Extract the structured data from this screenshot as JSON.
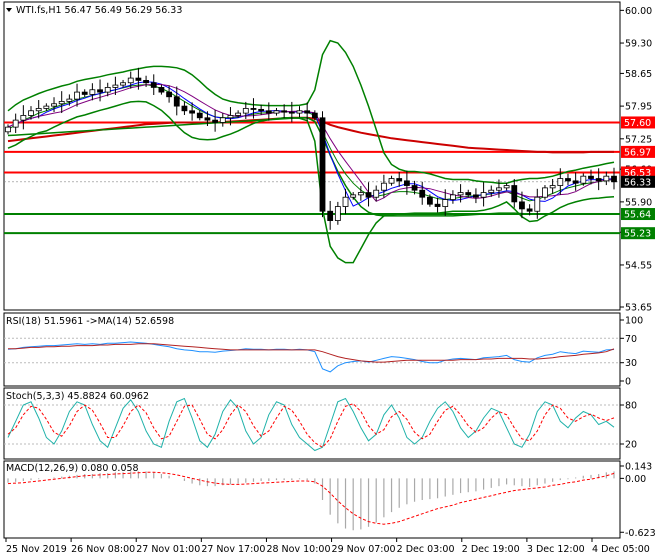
{
  "chart_data": {
    "type": "candlestick",
    "main": {
      "title": "WTI.fs,H1  56.47 56.49 56.29 56.33",
      "ohlc": [
        56.47,
        56.49,
        56.29,
        56.33
      ],
      "ylim": [
        53.65,
        60.05
      ],
      "yticks": [
        "60.00",
        "59.30",
        "58.65",
        "57.95",
        "57.25",
        "56.60",
        "55.90",
        "55.25",
        "54.55",
        "53.65"
      ],
      "levels": [
        {
          "label": "57.60",
          "value": 57.6,
          "color": "#ff0000"
        },
        {
          "label": "56.97",
          "value": 56.97,
          "color": "#ff0000"
        },
        {
          "label": "56.53",
          "value": 56.53,
          "color": "#ff0000"
        },
        {
          "label": "56.33",
          "value": 56.33,
          "color": "#000000"
        },
        {
          "label": "55.64",
          "value": 55.64,
          "color": "#008000"
        },
        {
          "label": "55.23",
          "value": 55.23,
          "color": "#008000"
        }
      ],
      "closes": [
        57.5,
        57.65,
        57.75,
        57.85,
        57.9,
        57.95,
        58.0,
        58.05,
        58.1,
        58.25,
        58.2,
        58.3,
        58.25,
        58.35,
        58.4,
        58.45,
        58.55,
        58.5,
        58.45,
        58.35,
        58.25,
        58.15,
        57.95,
        57.85,
        57.8,
        57.7,
        57.65,
        57.6,
        57.7,
        57.75,
        57.8,
        57.9,
        57.88,
        57.85,
        57.8,
        57.85,
        57.82,
        57.8,
        57.85,
        57.8,
        57.7,
        55.7,
        55.5,
        55.8,
        56.0,
        56.05,
        56.1,
        56.0,
        56.15,
        56.3,
        56.4,
        56.35,
        56.25,
        56.15,
        56.0,
        55.85,
        55.8,
        55.95,
        56.05,
        56.1,
        56.05,
        56.0,
        56.1,
        56.15,
        56.2,
        56.25,
        55.9,
        55.75,
        55.7,
        56.0,
        56.2,
        56.25,
        56.4,
        56.35,
        56.3,
        56.45,
        56.4,
        56.35,
        56.45,
        56.33
      ],
      "bb_mid": [
        57.45,
        57.55,
        57.65,
        57.72,
        57.8,
        57.85,
        57.92,
        57.98,
        58.03,
        58.1,
        58.14,
        58.18,
        58.22,
        58.26,
        58.3,
        58.34,
        58.38,
        58.4,
        58.41,
        58.38,
        58.33,
        58.25,
        58.15,
        58.05,
        57.95,
        57.86,
        57.78,
        57.72,
        57.7,
        57.7,
        57.72,
        57.75,
        57.78,
        57.8,
        57.81,
        57.82,
        57.83,
        57.83,
        57.83,
        57.82,
        57.75,
        57.4,
        57.05,
        56.75,
        56.5,
        56.3,
        56.15,
        56.05,
        56.02,
        56.05,
        56.1,
        56.12,
        56.12,
        56.1,
        56.07,
        56.02,
        55.97,
        55.95,
        55.97,
        56.0,
        56.02,
        56.03,
        56.05,
        56.07,
        56.1,
        56.12,
        56.05,
        55.98,
        55.92,
        55.95,
        56.02,
        56.08,
        56.15,
        56.2,
        56.24,
        56.28,
        56.31,
        56.33,
        56.36,
        56.38
      ],
      "bb_up": [
        57.85,
        57.98,
        58.08,
        58.15,
        58.22,
        58.28,
        58.33,
        58.38,
        58.42,
        58.48,
        58.52,
        58.55,
        58.58,
        58.62,
        58.65,
        58.68,
        58.72,
        58.75,
        58.78,
        58.8,
        58.8,
        58.79,
        58.77,
        58.72,
        58.62,
        58.48,
        58.33,
        58.2,
        58.1,
        58.05,
        58.02,
        58.0,
        57.98,
        57.97,
        57.96,
        57.96,
        57.96,
        57.96,
        57.97,
        58.0,
        58.3,
        59.05,
        59.35,
        59.3,
        59.1,
        58.8,
        58.4,
        57.95,
        57.45,
        56.95,
        56.7,
        56.6,
        56.55,
        56.55,
        56.53,
        56.5,
        56.45,
        56.4,
        56.38,
        56.38,
        56.38,
        56.35,
        56.33,
        56.32,
        56.3,
        56.3,
        56.35,
        56.38,
        56.4,
        56.4,
        56.42,
        56.45,
        56.5,
        56.55,
        56.58,
        56.62,
        56.65,
        56.68,
        56.72,
        56.75
      ],
      "bb_low": [
        57.05,
        57.12,
        57.22,
        57.3,
        57.38,
        57.42,
        57.5,
        57.58,
        57.65,
        57.72,
        57.76,
        57.81,
        57.86,
        57.9,
        57.95,
        58.0,
        58.04,
        58.05,
        58.04,
        57.96,
        57.86,
        57.71,
        57.53,
        57.38,
        57.28,
        57.24,
        57.23,
        57.24,
        57.3,
        57.35,
        57.42,
        57.5,
        57.58,
        57.63,
        57.66,
        57.68,
        57.7,
        57.7,
        57.69,
        57.64,
        57.2,
        55.75,
        54.95,
        54.7,
        54.6,
        54.6,
        54.9,
        55.2,
        55.45,
        55.6,
        55.62,
        55.64,
        55.65,
        55.66,
        55.66,
        55.66,
        55.66,
        55.68,
        55.7,
        55.7,
        55.7,
        55.7,
        55.72,
        55.76,
        55.82,
        55.9,
        55.75,
        55.58,
        55.48,
        55.5,
        55.6,
        55.68,
        55.78,
        55.85,
        55.9,
        55.94,
        55.97,
        55.98,
        56.0,
        56.01
      ],
      "ma_slow": [
        57.2,
        57.22,
        57.24,
        57.26,
        57.28,
        57.3,
        57.32,
        57.34,
        57.36,
        57.38,
        57.4,
        57.42,
        57.44,
        57.46,
        57.48,
        57.5,
        57.52,
        57.54,
        57.56,
        57.57,
        57.58,
        57.59,
        57.6,
        57.6,
        57.6,
        57.6,
        57.6,
        57.6,
        57.61,
        57.62,
        57.63,
        57.64,
        57.65,
        57.66,
        57.67,
        57.68,
        57.69,
        57.7,
        57.7,
        57.7,
        57.68,
        57.62,
        57.55,
        57.5,
        57.46,
        57.42,
        57.38,
        57.35,
        57.32,
        57.29,
        57.26,
        57.24,
        57.22,
        57.2,
        57.18,
        57.16,
        57.14,
        57.12,
        57.1,
        57.08,
        57.06,
        57.05,
        57.04,
        57.03,
        57.02,
        57.01,
        57.0,
        56.99,
        56.98,
        56.97,
        56.97,
        56.96,
        56.96,
        56.96,
        56.96,
        56.96,
        56.97,
        56.97,
        56.97,
        56.97
      ],
      "ma_green": [
        57.32,
        57.33,
        57.34,
        57.35,
        57.36,
        57.37,
        57.38,
        57.39,
        57.4,
        57.41,
        57.42,
        57.43,
        57.44,
        57.45,
        57.46,
        57.47,
        57.48,
        57.49,
        57.5,
        57.51,
        57.52,
        57.53,
        57.54,
        57.55,
        57.56,
        57.57,
        57.58,
        57.59,
        57.6,
        57.61,
        57.62,
        57.63,
        57.64,
        57.65,
        57.66,
        57.67,
        57.68,
        57.69,
        57.7,
        57.7,
        57.62,
        57.3,
        56.9,
        56.55,
        56.25,
        56.0,
        55.8,
        55.68,
        55.62,
        55.6,
        55.6,
        55.6,
        55.6,
        55.6,
        55.6,
        55.6,
        55.6,
        55.6,
        55.6,
        55.61,
        55.62,
        55.63,
        55.64,
        55.65,
        55.66,
        55.66,
        55.66,
        55.65,
        55.64,
        55.64,
        55.64,
        55.64,
        55.64,
        55.64,
        55.64,
        55.64,
        55.64,
        55.64,
        55.64,
        55.64
      ]
    },
    "rsi": {
      "label": "RSI(18) 51.5961  ->MA(14) 52.6598",
      "ylim": [
        0,
        100
      ],
      "yticks": [
        "100",
        "70",
        "30",
        "0"
      ],
      "values": [
        52,
        53,
        55,
        56,
        57,
        58,
        58,
        59,
        60,
        61,
        60,
        61,
        60,
        62,
        62,
        63,
        64,
        63,
        62,
        60,
        58,
        56,
        53,
        51,
        50,
        48,
        48,
        47,
        49,
        50,
        51,
        53,
        52,
        52,
        51,
        52,
        52,
        51,
        52,
        51,
        48,
        20,
        15,
        25,
        30,
        32,
        33,
        31,
        34,
        37,
        40,
        39,
        37,
        35,
        32,
        30,
        30,
        34,
        36,
        37,
        36,
        35,
        38,
        39,
        40,
        42,
        35,
        32,
        31,
        38,
        42,
        44,
        48,
        46,
        45,
        49,
        48,
        47,
        51,
        51.6
      ],
      "ma": [
        53,
        53,
        54,
        55,
        55,
        56,
        56,
        57,
        57,
        58,
        58,
        58,
        59,
        59,
        60,
        60,
        60,
        61,
        61,
        61,
        60,
        59,
        58,
        57,
        56,
        55,
        54,
        53,
        52,
        51,
        51,
        51,
        51,
        51,
        51,
        51,
        51,
        51,
        51,
        51,
        51,
        48,
        44,
        40,
        37,
        35,
        33,
        32,
        31,
        31,
        32,
        33,
        34,
        34,
        34,
        34,
        34,
        34,
        34,
        35,
        35,
        35,
        36,
        36,
        37,
        37,
        37,
        37,
        36,
        36,
        37,
        38,
        40,
        41,
        42,
        44,
        45,
        46,
        48,
        52.7
      ]
    },
    "stoch": {
      "label": "Stoch(5,3,3) 45.8824 60.0962",
      "ylim": [
        0,
        100
      ],
      "yticks": [
        "80",
        "20"
      ],
      "k": [
        30,
        55,
        80,
        85,
        60,
        30,
        20,
        40,
        70,
        85,
        80,
        50,
        25,
        15,
        45,
        75,
        88,
        70,
        40,
        20,
        15,
        55,
        85,
        90,
        60,
        25,
        15,
        35,
        70,
        88,
        75,
        40,
        20,
        30,
        65,
        85,
        80,
        50,
        30,
        20,
        10,
        15,
        50,
        85,
        90,
        70,
        45,
        25,
        35,
        65,
        80,
        60,
        30,
        20,
        30,
        55,
        75,
        85,
        70,
        45,
        30,
        40,
        60,
        75,
        70,
        45,
        20,
        15,
        35,
        70,
        85,
        80,
        55,
        45,
        60,
        70,
        65,
        50,
        55,
        45.9
      ],
      "d": [
        35,
        45,
        65,
        78,
        75,
        58,
        38,
        32,
        48,
        70,
        80,
        72,
        52,
        30,
        30,
        48,
        70,
        80,
        68,
        45,
        28,
        32,
        55,
        78,
        80,
        58,
        35,
        28,
        42,
        65,
        80,
        70,
        48,
        32,
        40,
        60,
        78,
        72,
        55,
        35,
        22,
        15,
        28,
        55,
        78,
        82,
        70,
        48,
        35,
        42,
        62,
        70,
        58,
        38,
        28,
        35,
        55,
        72,
        78,
        65,
        48,
        38,
        45,
        60,
        70,
        65,
        45,
        28,
        25,
        40,
        65,
        80,
        75,
        60,
        55,
        62,
        66,
        60,
        56,
        60.1
      ]
    },
    "macd": {
      "label": "MACD(12,26,9) 0.080 0.058",
      "ylim": [
        -0.62,
        0.143
      ],
      "yticks": [
        "0.143",
        "0.00",
        "-0.623"
      ],
      "hist": [
        -0.05,
        -0.04,
        -0.03,
        -0.02,
        -0.01,
        0.0,
        0.01,
        0.02,
        0.03,
        0.04,
        0.05,
        0.05,
        0.06,
        0.06,
        0.07,
        0.07,
        0.08,
        0.08,
        0.08,
        0.07,
        0.05,
        0.03,
        0.0,
        -0.03,
        -0.06,
        -0.08,
        -0.09,
        -0.09,
        -0.08,
        -0.07,
        -0.06,
        -0.05,
        -0.04,
        -0.03,
        -0.03,
        -0.02,
        -0.02,
        -0.02,
        -0.01,
        -0.02,
        -0.06,
        -0.25,
        -0.42,
        -0.52,
        -0.58,
        -0.6,
        -0.59,
        -0.56,
        -0.51,
        -0.45,
        -0.39,
        -0.34,
        -0.3,
        -0.27,
        -0.25,
        -0.24,
        -0.23,
        -0.21,
        -0.19,
        -0.17,
        -0.16,
        -0.15,
        -0.13,
        -0.11,
        -0.09,
        -0.07,
        -0.08,
        -0.09,
        -0.1,
        -0.08,
        -0.06,
        -0.04,
        -0.02,
        -0.01,
        0.01,
        0.03,
        0.04,
        0.05,
        0.07,
        0.08
      ],
      "signal": [
        -0.06,
        -0.055,
        -0.05,
        -0.04,
        -0.03,
        -0.02,
        -0.01,
        0.0,
        0.01,
        0.02,
        0.03,
        0.035,
        0.04,
        0.045,
        0.05,
        0.055,
        0.06,
        0.065,
        0.07,
        0.07,
        0.065,
        0.055,
        0.04,
        0.02,
        0.0,
        -0.02,
        -0.04,
        -0.055,
        -0.065,
        -0.07,
        -0.07,
        -0.065,
        -0.06,
        -0.055,
        -0.05,
        -0.045,
        -0.04,
        -0.035,
        -0.03,
        -0.03,
        -0.04,
        -0.09,
        -0.17,
        -0.26,
        -0.34,
        -0.41,
        -0.46,
        -0.5,
        -0.52,
        -0.53,
        -0.52,
        -0.5,
        -0.47,
        -0.44,
        -0.41,
        -0.38,
        -0.35,
        -0.33,
        -0.31,
        -0.28,
        -0.26,
        -0.24,
        -0.22,
        -0.2,
        -0.18,
        -0.16,
        -0.14,
        -0.13,
        -0.12,
        -0.11,
        -0.1,
        -0.08,
        -0.07,
        -0.05,
        -0.04,
        -0.02,
        -0.01,
        0.01,
        0.03,
        0.058
      ]
    },
    "xlabels": [
      "25 Nov 2019",
      "26 Nov 08:00",
      "27 Nov 01:00",
      "27 Nov 17:00",
      "28 Nov 10:00",
      "29 Nov 07:00",
      "2 Dec 03:00",
      "2 Dec 19:00",
      "3 Dec 12:00",
      "4 Dec 05:00"
    ],
    "colors": {
      "up": "#008000",
      "down": "#008000",
      "bb": "#008000",
      "ma_fast": "#0000ff",
      "ma_mid": "#800080",
      "ma_slow": "#cc0000",
      "rsi": "#1e90ff",
      "rsi_ma": "#b22222",
      "stoch_k": "#20b2aa",
      "stoch_d": "#ff0000",
      "macd_hist": "#a9a9a9",
      "macd_signal": "#ff0000"
    }
  }
}
